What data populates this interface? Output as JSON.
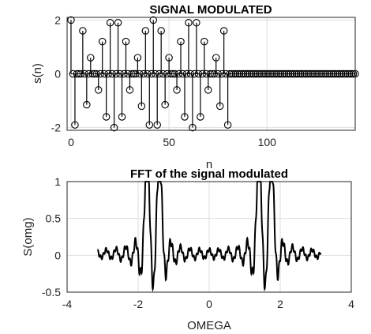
{
  "chart_data": [
    {
      "type": "stem",
      "title": "SIGNAL MODULATED",
      "xlabel": "n",
      "ylabel": "s(n)",
      "xlim": [
        -2,
        145
      ],
      "ylim": [
        -2.1,
        2.1
      ],
      "xticks": [
        0,
        50,
        100
      ],
      "yticks": [
        -2,
        0,
        2
      ],
      "grid": true,
      "series": [
        {
          "x_start": 0,
          "x_end": 145,
          "values": [
            2,
            -1.9,
            0,
            1.6,
            -1.15,
            0.6,
            0,
            -0.6,
            1.2,
            -1.6,
            1.9,
            -2,
            1.9,
            -1.6,
            1.2,
            -0.6,
            0,
            0.6,
            -1.2,
            1.6,
            -1.9,
            2,
            -1.9,
            1.6,
            -1.15,
            0.6,
            0,
            -0.6,
            1.2,
            -1.6,
            1.9,
            -2,
            1.9,
            -1.6,
            1.2,
            -0.6,
            0,
            0.6,
            -1.2,
            1.6,
            -1.9
          ],
          "spacing": 2,
          "rest_value": 0
        }
      ]
    },
    {
      "type": "line",
      "title": "FFT of the signal modulated",
      "xlabel": "OMEGA",
      "ylabel": "S(omg)",
      "xlim": [
        -4,
        4
      ],
      "ylim": [
        -0.5,
        1
      ],
      "xticks": [
        -4,
        -2,
        0,
        2,
        4
      ],
      "yticks": [
        -0.5,
        0,
        0.5,
        1
      ],
      "grid": true,
      "series": [
        {
          "x_range": [
            -3.14,
            3.14
          ],
          "peaks": [
            -1.75,
            -1.4,
            1.4,
            1.75
          ],
          "baseline": 0.02
        }
      ]
    }
  ]
}
